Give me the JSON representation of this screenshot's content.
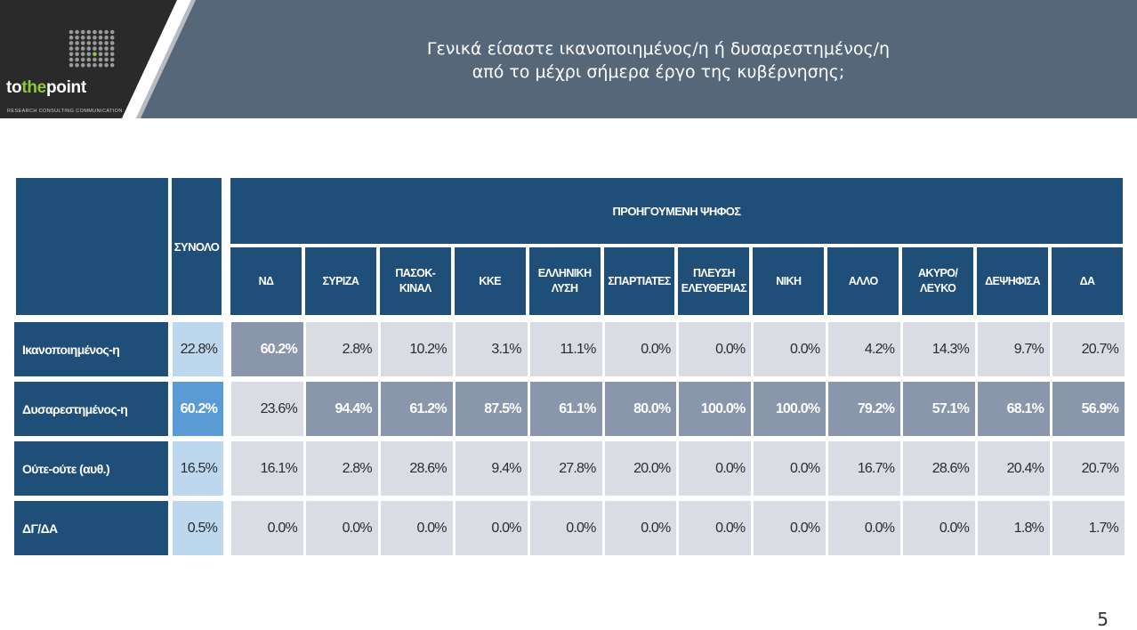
{
  "header": {
    "logo_text": {
      "part1": "to",
      "part2": "the",
      "part3": "point"
    },
    "logo_tagline": "RESEARCH   CONSULTING   COMMUNICATION",
    "title_line1": "Γενικά είσαστε ικανοποιημένος/η ή δυσαρεστημένος/η",
    "title_line2": "από το μέχρι σήμερα έργο της κυβέρνησης;"
  },
  "page_number": "5",
  "colors": {
    "header_band": "#57677a",
    "table_header": "#1f4e79",
    "cell_light": "#d9dde3",
    "cell_highlight": "#8996ab",
    "total_light": "#bdd7ee",
    "total_highlight": "#5b9bd5",
    "logo_accent": "#8fc73e"
  },
  "chart_data": {
    "type": "table",
    "total_label": "ΣΥΝΟΛΟ",
    "group_label": "ΠΡΟΗΓΟΥΜΕΝΗ ΨΗΦΟΣ",
    "columns": [
      {
        "line1": "ΝΔ",
        "line2": ""
      },
      {
        "line1": "ΣΥΡΙΖΑ",
        "line2": ""
      },
      {
        "line1": "ΠΑΣΟΚ-",
        "line2": "ΚΙΝΑΛ"
      },
      {
        "line1": "ΚΚΕ",
        "line2": ""
      },
      {
        "line1": "ΕΛΛΗΝΙΚΗ",
        "line2": "ΛΥΣΗ"
      },
      {
        "line1": "ΣΠΑΡΤΙΑΤΕΣ",
        "line2": ""
      },
      {
        "line1": "ΠΛΕΥΣΗ",
        "line2": "ΕΛΕΥΘΕΡΙΑΣ"
      },
      {
        "line1": "ΝΙΚΗ",
        "line2": ""
      },
      {
        "line1": "ΑΛΛΟ",
        "line2": ""
      },
      {
        "line1": "ΑΚΥΡΟ/",
        "line2": "ΛΕΥΚΟ"
      },
      {
        "line1": "ΔΕΨΗΦΙΣΑ",
        "line2": ""
      },
      {
        "line1": "ΔΑ",
        "line2": ""
      }
    ],
    "rows": [
      {
        "label": "Ικανοποιημένος-η",
        "total": "22.8%",
        "total_highlight": false,
        "values": [
          "60.2%",
          "2.8%",
          "10.2%",
          "3.1%",
          "11.1%",
          "0.0%",
          "0.0%",
          "0.0%",
          "4.2%",
          "14.3%",
          "9.7%",
          "20.7%"
        ],
        "highlight": [
          true,
          false,
          false,
          false,
          false,
          false,
          false,
          false,
          false,
          false,
          false,
          false
        ]
      },
      {
        "label": "Δυσαρεστημένος-η",
        "total": "60.2%",
        "total_highlight": true,
        "values": [
          "23.6%",
          "94.4%",
          "61.2%",
          "87.5%",
          "61.1%",
          "80.0%",
          "100.0%",
          "100.0%",
          "79.2%",
          "57.1%",
          "68.1%",
          "56.9%"
        ],
        "highlight": [
          false,
          true,
          true,
          true,
          true,
          true,
          true,
          true,
          true,
          true,
          true,
          true
        ]
      },
      {
        "label": "Ούτε-ούτε (αυθ.)",
        "total": "16.5%",
        "total_highlight": false,
        "values": [
          "16.1%",
          "2.8%",
          "28.6%",
          "9.4%",
          "27.8%",
          "20.0%",
          "0.0%",
          "0.0%",
          "16.7%",
          "28.6%",
          "20.4%",
          "20.7%"
        ],
        "highlight": [
          false,
          false,
          false,
          false,
          false,
          false,
          false,
          false,
          false,
          false,
          false,
          false
        ]
      },
      {
        "label": "ΔΓ/ΔΑ",
        "total": "0.5%",
        "total_highlight": false,
        "values": [
          "0.0%",
          "0.0%",
          "0.0%",
          "0.0%",
          "0.0%",
          "0.0%",
          "0.0%",
          "0.0%",
          "0.0%",
          "0.0%",
          "1.8%",
          "1.7%"
        ],
        "highlight": [
          false,
          false,
          false,
          false,
          false,
          false,
          false,
          false,
          false,
          false,
          false,
          false
        ]
      }
    ]
  }
}
